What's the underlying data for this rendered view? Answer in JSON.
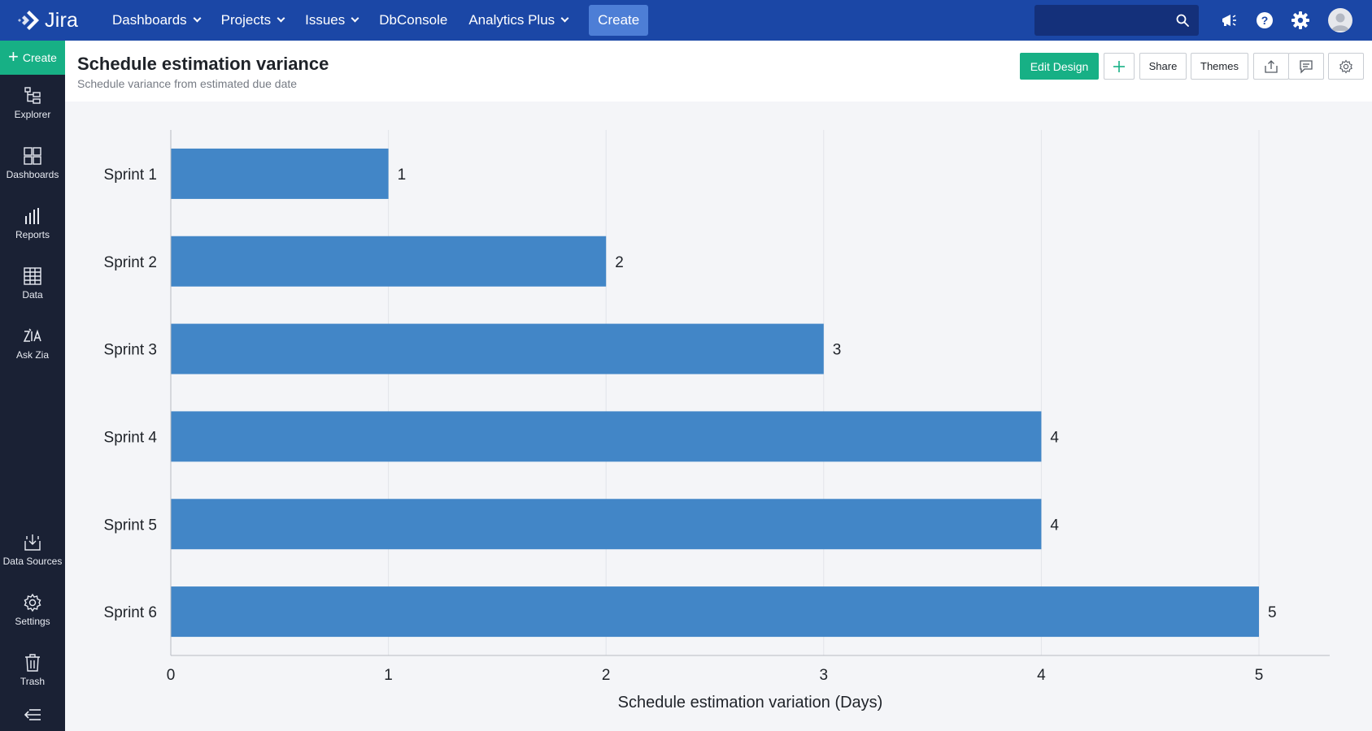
{
  "topnav": {
    "logo_text": "Jira",
    "items": [
      {
        "label": "Dashboards",
        "dropdown": true
      },
      {
        "label": "Projects",
        "dropdown": true
      },
      {
        "label": "Issues",
        "dropdown": true
      },
      {
        "label": "DbConsole",
        "dropdown": false
      },
      {
        "label": "Analytics Plus",
        "dropdown": true
      }
    ],
    "create_label": "Create",
    "search": {
      "placeholder": ""
    },
    "icons": [
      "announcement-icon",
      "help-icon",
      "settings-gear-icon",
      "user-avatar-icon"
    ]
  },
  "sidebar": {
    "create_label": "Create",
    "items": [
      {
        "label": "Explorer",
        "icon": "explorer-tree-icon"
      },
      {
        "label": "Dashboards",
        "icon": "dashboards-grid-icon"
      },
      {
        "label": "Reports",
        "icon": "reports-bars-icon"
      },
      {
        "label": "Data",
        "icon": "data-table-icon"
      },
      {
        "label": "Ask Zia",
        "icon": "ask-zia-icon"
      },
      {
        "label": "Data Sources",
        "icon": "data-sources-icon"
      },
      {
        "label": "Settings",
        "icon": "settings-icon"
      },
      {
        "label": "Trash",
        "icon": "trash-icon"
      }
    ],
    "collapse_icon": "collapse-sidebar-icon"
  },
  "header": {
    "title": "Schedule estimation variance",
    "subtitle": "Schedule variance from estimated due date",
    "buttons": {
      "edit_design": "Edit Design",
      "share": "Share",
      "themes": "Themes"
    }
  },
  "colors": {
    "nav": "#1b47a6",
    "sidebar": "#1a2134",
    "accent_green": "#17b085",
    "bar": "#4286c7",
    "chart_bg": "#f4f5f8"
  },
  "chart_data": {
    "type": "bar",
    "orientation": "horizontal",
    "categories": [
      "Sprint 1",
      "Sprint 2",
      "Sprint 3",
      "Sprint 4",
      "Sprint 5",
      "Sprint 6"
    ],
    "values": [
      1,
      2,
      3,
      4,
      4,
      5
    ],
    "data_labels": [
      "1",
      "2",
      "3",
      "4",
      "4",
      "5"
    ],
    "xlabel": "Schedule estimation variation (Days)",
    "ylabel": "",
    "xlim": [
      0,
      5.3
    ],
    "xticks": [
      "0",
      "1",
      "2",
      "3",
      "4",
      "5"
    ],
    "grid": true,
    "legend": "none"
  }
}
